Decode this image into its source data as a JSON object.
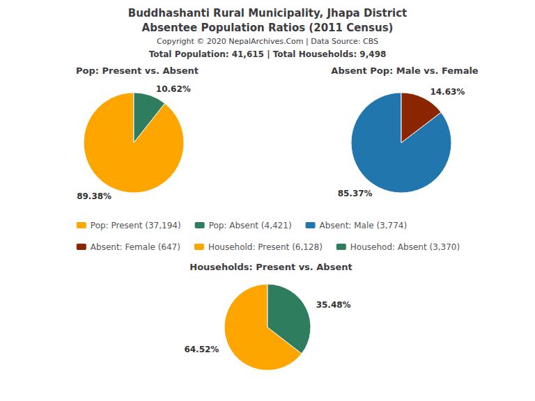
{
  "title": "Buddhashanti Rural Municipality, Jhapa District",
  "subtitle": "Absentee Population Ratios (2011 Census)",
  "annotations": [
    "Copyright © 2020 NepalArchives.Com | Data Source: CBS",
    "Total Population: 41,615 | Total Households: 9,498"
  ],
  "legend": "center",
  "chart_data": [
    {
      "type": "pie",
      "title": "Pop: Present vs. Absent",
      "categories": [
        "Pop: Present (37,194)",
        "Pop: Absent (4,421)"
      ],
      "values": [
        89.38,
        10.62
      ],
      "value_labels": [
        "89.38%",
        "10.62%"
      ],
      "colors": [
        "#FFA500",
        "#2E7D5E"
      ],
      "data_labels": true
    },
    {
      "type": "pie",
      "title": "Absent Pop: Male vs. Female",
      "categories": [
        "Absent: Male (3,774)",
        "Absent: Female (647)"
      ],
      "values": [
        85.37,
        14.63
      ],
      "value_labels": [
        "85.37%",
        "14.63%"
      ],
      "colors": [
        "#2176AE",
        "#8B2500"
      ],
      "data_labels": true
    },
    {
      "type": "pie",
      "title": "Households: Present vs. Absent",
      "categories": [
        "Household: Present (6,128)",
        "Househod: Absent (3,370)"
      ],
      "values": [
        64.52,
        35.48
      ],
      "value_labels": [
        "64.52%",
        "35.48%"
      ],
      "colors": [
        "#FFA500",
        "#2E7D5E"
      ],
      "data_labels": true
    }
  ]
}
